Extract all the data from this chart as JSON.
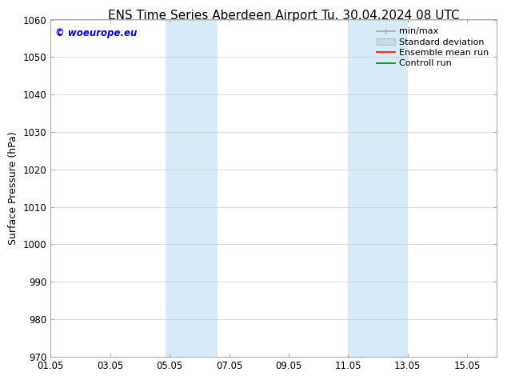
{
  "title": "ENS Time Series Aberdeen Airport",
  "title2": "Tu. 30.04.2024 08 UTC",
  "ylabel": "Surface Pressure (hPa)",
  "ylim": [
    970,
    1060
  ],
  "yticks": [
    970,
    980,
    990,
    1000,
    1010,
    1020,
    1030,
    1040,
    1050,
    1060
  ],
  "xtick_labels": [
    "01.05",
    "03.05",
    "05.05",
    "07.05",
    "09.05",
    "11.05",
    "13.05",
    "15.05"
  ],
  "xtick_positions": [
    0,
    2,
    4,
    6,
    8,
    10,
    12,
    14
  ],
  "xlim": [
    0,
    15
  ],
  "shaded_bands": [
    {
      "start": 3.85,
      "end": 5.6
    },
    {
      "start": 10.0,
      "end": 12.0
    }
  ],
  "shade_color": "#d6eaf8",
  "watermark": "© woeurope.eu",
  "watermark_color": "#0000cc",
  "bg_color": "#ffffff",
  "legend_items": [
    {
      "label": "min/max",
      "color": "#aaaaaa",
      "lw": 1.2
    },
    {
      "label": "Standard deviation",
      "color": "#c8dce8",
      "lw": 6
    },
    {
      "label": "Ensemble mean run",
      "color": "#ff0000",
      "lw": 1.2
    },
    {
      "label": "Controll run",
      "color": "#008000",
      "lw": 1.2
    }
  ],
  "grid_color": "#cccccc",
  "title_fontsize": 11,
  "axis_label_fontsize": 9,
  "tick_fontsize": 8.5,
  "legend_fontsize": 8
}
